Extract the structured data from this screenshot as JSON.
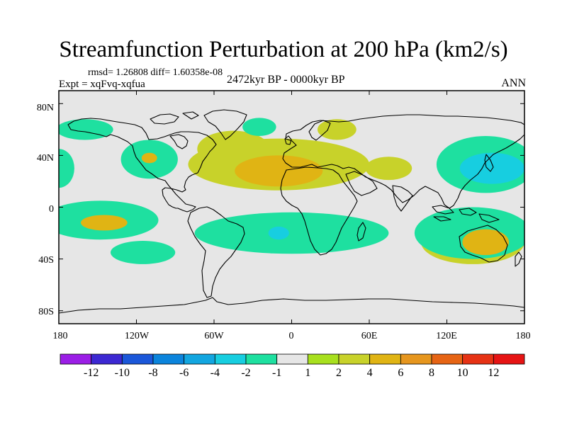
{
  "title": "Streamfunction Perturbation at 200 hPa (km2/s)",
  "stats": "rmsd= 1.26808 diff= 1.60358e-08",
  "experiment": "Expt = xqFvq-xqfua",
  "period": "2472kyr BP - 0000kyr BP",
  "season": "ANN",
  "axes": {
    "lat_ticks": [
      "80N",
      "40N",
      "0",
      "40S",
      "80S"
    ],
    "lon_ticks": [
      "180",
      "120W",
      "60W",
      "0",
      "60E",
      "120E",
      "180"
    ]
  },
  "colorbar": {
    "labels": [
      "-12",
      "-10",
      "-8",
      "-6",
      "-4",
      "-2",
      "-1",
      "1",
      "2",
      "4",
      "6",
      "8",
      "10",
      "12"
    ],
    "colors": [
      "#9b1ee6",
      "#3c28d2",
      "#1b57d9",
      "#0b84dc",
      "#12a6e0",
      "#17cee0",
      "#1ee0a0",
      "#e6e6e6",
      "#a8e01e",
      "#c8d22a",
      "#e0b414",
      "#e6961e",
      "#e66414",
      "#e63214",
      "#e61414"
    ]
  },
  "chart_data": {
    "type": "filled-contour-map",
    "title": "Streamfunction Perturbation at 200 hPa (km2/s)",
    "projection": "cylindrical equidistant",
    "lon_range": [
      -180,
      180
    ],
    "lat_range": [
      -90,
      90
    ],
    "levels": [
      -12,
      -10,
      -8,
      -6,
      -4,
      -2,
      -1,
      1,
      2,
      4,
      6,
      8,
      10,
      12
    ],
    "anomalies": [
      {
        "name": "north-atlantic-africa-high",
        "lon": -10,
        "lat": 33,
        "rx": 70,
        "ry": 20,
        "level": 2
      },
      {
        "name": "sahara-core",
        "lon": -10,
        "lat": 28,
        "rx": 34,
        "ry": 12,
        "level": 4
      },
      {
        "name": "north-atlantic-extension",
        "lon": -45,
        "lat": 45,
        "rx": 28,
        "ry": 14,
        "level": 2
      },
      {
        "name": "west-pacific-low",
        "lon": 150,
        "lat": 33,
        "rx": 38,
        "ry": 22,
        "level": -2
      },
      {
        "name": "west-pacific-low-core",
        "lon": 155,
        "lat": 30,
        "rx": 25,
        "ry": 12,
        "level": -4
      },
      {
        "name": "east-pacific-low",
        "lon": -180,
        "lat": 30,
        "rx": 12,
        "ry": 15,
        "level": -2
      },
      {
        "name": "north-america-high",
        "lon": -110,
        "lat": 40,
        "rx": 12,
        "ry": 8,
        "level": 2
      },
      {
        "name": "north-america-high-core",
        "lon": -110,
        "lat": 38,
        "rx": 6,
        "ry": 4,
        "level": 4
      },
      {
        "name": "north-america-low",
        "lon": -110,
        "lat": 37,
        "rx": 22,
        "ry": 15,
        "level": -2
      },
      {
        "name": "canada-low",
        "lon": -160,
        "lat": 60,
        "rx": 22,
        "ry": 8,
        "level": -2
      },
      {
        "name": "greenland-low",
        "lon": -25,
        "lat": 62,
        "rx": 13,
        "ry": 7,
        "level": -2
      },
      {
        "name": "scandinavia-high",
        "lon": 35,
        "lat": 60,
        "rx": 15,
        "ry": 8,
        "level": 2
      },
      {
        "name": "central-asia-high",
        "lon": 75,
        "lat": 30,
        "rx": 18,
        "ry": 9,
        "level": 2
      },
      {
        "name": "south-pacific-high",
        "lon": -145,
        "lat": -12,
        "rx": 35,
        "ry": 12,
        "level": 2
      },
      {
        "name": "south-pacific-high-core",
        "lon": -145,
        "lat": -12,
        "rx": 18,
        "ry": 6,
        "level": 4
      },
      {
        "name": "south-pacific-low",
        "lon": -148,
        "lat": -10,
        "rx": 45,
        "ry": 15,
        "level": -2
      },
      {
        "name": "south-pacific-low-2",
        "lon": -115,
        "lat": -35,
        "rx": 25,
        "ry": 9,
        "level": -2
      },
      {
        "name": "south-atlantic-low",
        "lon": 0,
        "lat": -20,
        "rx": 75,
        "ry": 16,
        "level": -2
      },
      {
        "name": "south-atlantic-low-core",
        "lon": -10,
        "lat": -20,
        "rx": 8,
        "ry": 5,
        "level": -4
      },
      {
        "name": "australia-high",
        "lon": 140,
        "lat": -27,
        "rx": 40,
        "ry": 17,
        "level": 2
      },
      {
        "name": "australia-high-core",
        "lon": 150,
        "lat": -27,
        "rx": 18,
        "ry": 10,
        "level": 4
      },
      {
        "name": "australia-low",
        "lon": 140,
        "lat": -20,
        "rx": 45,
        "ry": 20,
        "level": -2
      }
    ]
  }
}
